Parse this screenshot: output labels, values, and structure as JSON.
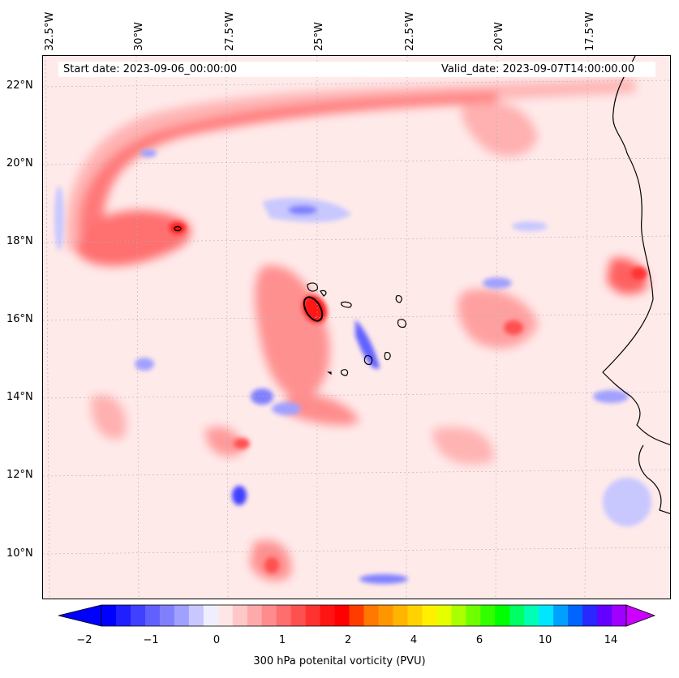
{
  "map": {
    "start_date_label": "Start date: 2023-09-06_00:00:00",
    "valid_date_label": "Valid_date: 2023-09-07T14:00:00.00",
    "longitude_labels": [
      "32.5°W",
      "30°W",
      "27.5°W",
      "25°W",
      "22.5°W",
      "20°W",
      "17.5°W"
    ],
    "latitude_labels": [
      "22°N",
      "20°N",
      "18°N",
      "16°N",
      "14°N",
      "12°N",
      "10°N"
    ],
    "variable": "300 hPa potential vorticity",
    "gridlines": true,
    "coastline_color": "#000000"
  },
  "colorbar": {
    "label": "300 hPa potenital vorticity (PVU)",
    "tick_labels": [
      "−2",
      "−1",
      "0",
      "1",
      "2",
      "4",
      "6",
      "10",
      "14"
    ],
    "colors": [
      "#0000ff",
      "#2020ff",
      "#4040ff",
      "#6060ff",
      "#8080ff",
      "#a0a0ff",
      "#c8c8ff",
      "#eeeeff",
      "#ffe6e6",
      "#ffc8c8",
      "#ffaaaa",
      "#ff8c8c",
      "#ff6e6e",
      "#ff5050",
      "#ff3232",
      "#ff1414",
      "#ff0000",
      "#ff3c00",
      "#ff7800",
      "#ff9600",
      "#ffb400",
      "#ffd200",
      "#fff000",
      "#e6ff00",
      "#aaff00",
      "#6eff00",
      "#32ff00",
      "#00ff00",
      "#00ff64",
      "#00ffb4",
      "#00e6ff",
      "#00a0ff",
      "#0064ff",
      "#2828ff",
      "#6400ff",
      "#a000ff"
    ],
    "extend_min_color": "#0000ff",
    "extend_max_color": "#cc00ff"
  }
}
